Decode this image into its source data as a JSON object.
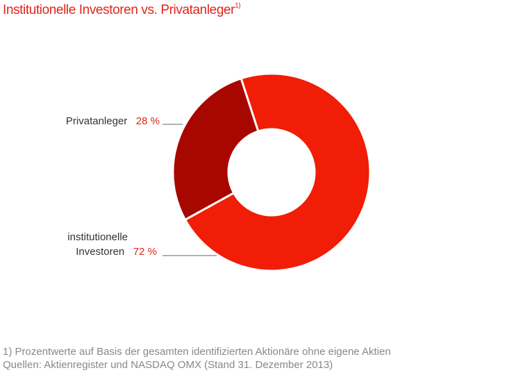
{
  "title": "Institutionelle Investoren vs. Privatanleger",
  "title_note": "1)",
  "chart_data": {
    "type": "pie",
    "variant": "donut",
    "title": "Institutionelle Investoren vs. Privatanleger",
    "slices": [
      {
        "label": "institutionelle Investoren",
        "label_line1": "institutionelle",
        "label_line2": "Investoren",
        "value": 72,
        "display": "72 %",
        "color": "#f11d06"
      },
      {
        "label": "Privatanleger",
        "value": 28,
        "display": "28 %",
        "color": "#a80700"
      }
    ]
  },
  "footnotes": {
    "line1": "1) Prozentwerte auf Basis der gesamten identifizierten Aktionäre ohne eigene Aktien",
    "line2": "Quellen: Aktienregister und NASDAQ OMX (Stand 31. Dezember 2013)"
  }
}
